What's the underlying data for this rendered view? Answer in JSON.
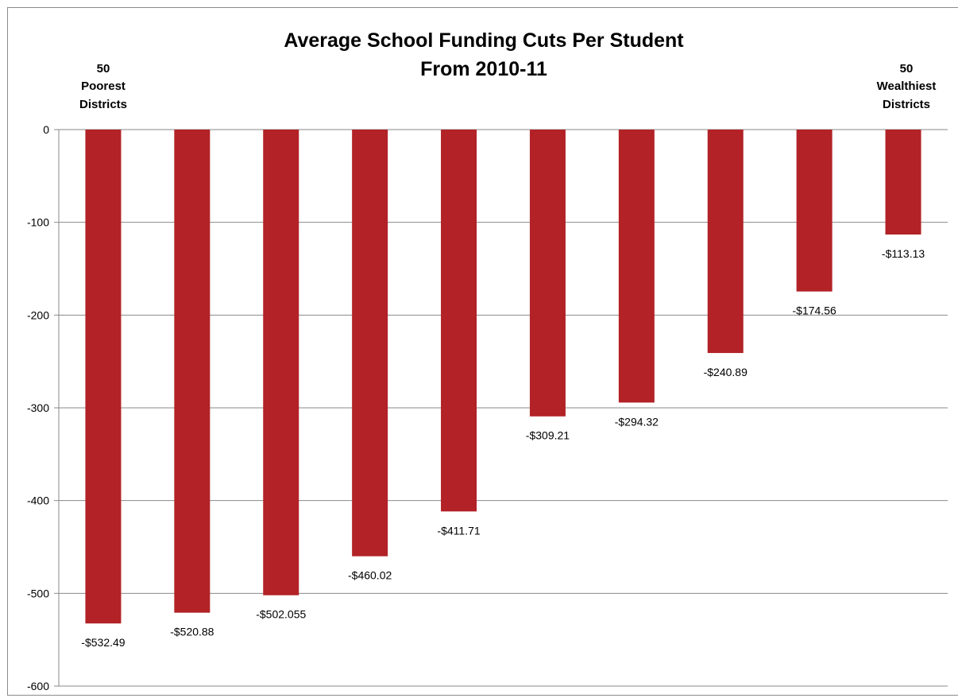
{
  "chart_data": {
    "type": "bar",
    "title": [
      "Average School Funding Cuts Per Student",
      "From 2010-11"
    ],
    "annotations": {
      "left": [
        "50",
        "Poorest",
        "Districts"
      ],
      "right": [
        "50",
        "Wealthiest",
        "Districts"
      ]
    },
    "values": [
      -532.49,
      -520.88,
      -502.055,
      -460.02,
      -411.71,
      -309.21,
      -294.32,
      -240.89,
      -174.56,
      -113.13
    ],
    "data_labels": [
      "-$532.49",
      "-$520.88",
      "-$502.055",
      "-$460.02",
      "-$411.71",
      "-$309.21",
      "-$294.32",
      "-$240.89",
      "-$174.56",
      "-$113.13"
    ],
    "y_ticks": [
      0,
      -100,
      -200,
      -300,
      -400,
      -500,
      -600
    ],
    "ylim": [
      -600,
      0
    ],
    "grid": true,
    "colors": {
      "bar": "#b22226",
      "grid": "#8a8a8a"
    }
  }
}
